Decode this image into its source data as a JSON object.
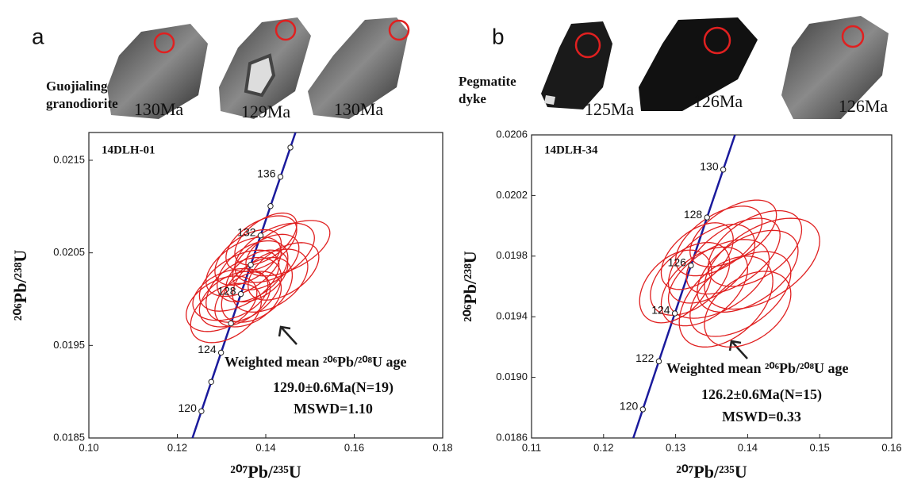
{
  "chart_data": [
    {
      "type": "concordia",
      "panel": "a",
      "rock": [
        "Guojialing",
        "granodiorite"
      ],
      "grain_ages": [
        "130Ma",
        "129Ma",
        "130Ma"
      ],
      "sample": "14DLH-01",
      "xlabel": "²⁰⁷Pb/²³⁵U",
      "ylabel": "²⁰⁶Pb/²³⁸U",
      "xlim": [
        0.1,
        0.18
      ],
      "xticks": [
        {
          "value": 0.1,
          "label": "0.10"
        },
        0.12,
        0.14,
        0.16,
        0.18
      ],
      "ylim": [
        0.0185,
        0.0218
      ],
      "yticks": [
        0.0185,
        0.0195,
        0.0205,
        0.0215
      ],
      "concordia": {
        "color": "#1a1a9c",
        "age_labels": [
          120,
          null,
          124,
          null,
          128,
          null,
          132,
          null,
          136,
          null
        ],
        "x": [
          0.12545,
          0.12767,
          0.12989,
          0.13213,
          0.13436,
          0.13661,
          0.13884,
          0.14107,
          0.14332,
          0.14557
        ],
        "y": [
          0.018789,
          0.019106,
          0.019422,
          0.019738,
          0.020055,
          0.020371,
          0.020688,
          0.021005,
          0.021321,
          0.021638
        ]
      },
      "ellipse_color": "#e02020",
      "ellipses": [
        {
          "x": 0.137,
          "y": 0.0203,
          "x_err": 0.008,
          "y_err": 0.00033,
          "rho": 0.45
        },
        {
          "x": 0.14,
          "y": 0.0204,
          "x_err": 0.0075,
          "y_err": 0.0003,
          "rho": 0.5
        },
        {
          "x": 0.135,
          "y": 0.0201,
          "x_err": 0.0085,
          "y_err": 0.00035,
          "rho": 0.4
        },
        {
          "x": 0.142,
          "y": 0.0205,
          "x_err": 0.009,
          "y_err": 0.00032,
          "rho": 0.5
        },
        {
          "x": 0.133,
          "y": 0.02,
          "x_err": 0.008,
          "y_err": 0.0003,
          "rho": 0.4
        },
        {
          "x": 0.145,
          "y": 0.02055,
          "x_err": 0.0095,
          "y_err": 0.0003,
          "rho": 0.55
        },
        {
          "x": 0.138,
          "y": 0.02025,
          "x_err": 0.007,
          "y_err": 0.00028,
          "rho": 0.45
        },
        {
          "x": 0.13,
          "y": 0.01995,
          "x_err": 0.008,
          "y_err": 0.0003,
          "rho": 0.4
        },
        {
          "x": 0.136,
          "y": 0.02045,
          "x_err": 0.0075,
          "y_err": 0.0003,
          "rho": 0.5
        },
        {
          "x": 0.141,
          "y": 0.0202,
          "x_err": 0.0085,
          "y_err": 0.00034,
          "rho": 0.45
        },
        {
          "x": 0.134,
          "y": 0.0202,
          "x_err": 0.009,
          "y_err": 0.00033,
          "rho": 0.5
        },
        {
          "x": 0.139,
          "y": 0.0206,
          "x_err": 0.008,
          "y_err": 0.0003,
          "rho": 0.5
        },
        {
          "x": 0.132,
          "y": 0.02005,
          "x_err": 0.0085,
          "y_err": 0.00028,
          "rho": 0.35
        },
        {
          "x": 0.144,
          "y": 0.0203,
          "x_err": 0.008,
          "y_err": 0.00031,
          "rho": 0.5
        },
        {
          "x": 0.136,
          "y": 0.02,
          "x_err": 0.0075,
          "y_err": 0.0003,
          "rho": 0.4
        },
        {
          "x": 0.14,
          "y": 0.02065,
          "x_err": 0.007,
          "y_err": 0.00028,
          "rho": 0.55
        },
        {
          "x": 0.131,
          "y": 0.01985,
          "x_err": 0.008,
          "y_err": 0.00032,
          "rho": 0.4
        },
        {
          "x": 0.138,
          "y": 0.0201,
          "x_err": 0.008,
          "y_err": 0.00035,
          "rho": 0.45
        },
        {
          "x": 0.135,
          "y": 0.02035,
          "x_err": 0.0085,
          "y_err": 0.00032,
          "rho": 0.5
        }
      ],
      "annotation": [
        "Weighted mean ²⁰⁶Pb/²⁰⁸U age",
        "129.0±0.6Ma(N=19)",
        "MSWD=1.10"
      ]
    },
    {
      "type": "concordia",
      "panel": "b",
      "rock": [
        "Pegmatite",
        "dyke"
      ],
      "grain_ages": [
        "125Ma",
        "126Ma",
        "126Ma"
      ],
      "sample": "14DLH-34",
      "xlabel": "²⁰⁷Pb/²³⁵U",
      "ylabel": "²⁰⁶Pb/²³⁸U",
      "xlim": [
        0.11,
        0.16
      ],
      "xticks": [
        0.11,
        0.12,
        0.13,
        0.14,
        0.15,
        0.16
      ],
      "ylim": [
        0.0186,
        0.0206
      ],
      "yticks": [
        0.0186,
        {
          "value": 0.019,
          "label": "0.0190"
        },
        0.0194,
        0.0198,
        0.0202,
        0.0206
      ],
      "concordia": {
        "color": "#1a1a9c",
        "age_labels": [
          120,
          122,
          124,
          126,
          128,
          130
        ],
        "x": [
          0.12545,
          0.12767,
          0.12989,
          0.13213,
          0.13436,
          0.13661
        ],
        "y": [
          0.018789,
          0.019106,
          0.019422,
          0.019738,
          0.020055,
          0.020371
        ]
      },
      "ellipse_color": "#e02020",
      "ellipses": [
        {
          "x": 0.135,
          "y": 0.01975,
          "x_err": 0.006,
          "y_err": 0.00026,
          "rho": 0.5
        },
        {
          "x": 0.138,
          "y": 0.0198,
          "x_err": 0.0065,
          "y_err": 0.00025,
          "rho": 0.55
        },
        {
          "x": 0.132,
          "y": 0.01965,
          "x_err": 0.0055,
          "y_err": 0.00024,
          "rho": 0.45
        },
        {
          "x": 0.14,
          "y": 0.0197,
          "x_err": 0.007,
          "y_err": 0.00027,
          "rho": 0.5
        },
        {
          "x": 0.136,
          "y": 0.0199,
          "x_err": 0.006,
          "y_err": 0.00023,
          "rho": 0.55
        },
        {
          "x": 0.141,
          "y": 0.01985,
          "x_err": 0.0065,
          "y_err": 0.00025,
          "rho": 0.5
        },
        {
          "x": 0.134,
          "y": 0.0196,
          "x_err": 0.006,
          "y_err": 0.00026,
          "rho": 0.45
        },
        {
          "x": 0.139,
          "y": 0.01955,
          "x_err": 0.007,
          "y_err": 0.00028,
          "rho": 0.5
        },
        {
          "x": 0.137,
          "y": 0.0195,
          "x_err": 0.0065,
          "y_err": 0.0003,
          "rho": 0.45
        },
        {
          "x": 0.142,
          "y": 0.01975,
          "x_err": 0.008,
          "y_err": 0.0003,
          "rho": 0.5
        },
        {
          "x": 0.133,
          "y": 0.0198,
          "x_err": 0.005,
          "y_err": 0.00022,
          "rho": 0.5
        },
        {
          "x": 0.14,
          "y": 0.01945,
          "x_err": 0.006,
          "y_err": 0.00025,
          "rho": 0.4
        },
        {
          "x": 0.136,
          "y": 0.01965,
          "x_err": 0.007,
          "y_err": 0.00026,
          "rho": 0.5
        },
        {
          "x": 0.13,
          "y": 0.0196,
          "x_err": 0.005,
          "y_err": 0.00024,
          "rho": 0.4
        },
        {
          "x": 0.138,
          "y": 0.01995,
          "x_err": 0.006,
          "y_err": 0.00022,
          "rho": 0.55
        }
      ],
      "annotation": [
        "Weighted mean ²⁰⁶Pb/²⁰⁸U age",
        "126.2±0.6Ma(N=15)",
        "MSWD=0.33"
      ]
    }
  ]
}
